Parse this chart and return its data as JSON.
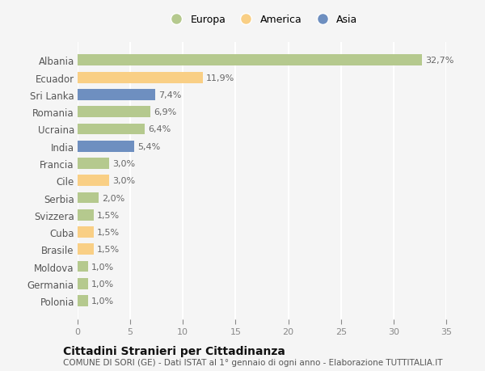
{
  "categories": [
    "Albania",
    "Ecuador",
    "Sri Lanka",
    "Romania",
    "Ucraina",
    "India",
    "Francia",
    "Cile",
    "Serbia",
    "Svizzera",
    "Cuba",
    "Brasile",
    "Moldova",
    "Germania",
    "Polonia"
  ],
  "values": [
    32.7,
    11.9,
    7.4,
    6.9,
    6.4,
    5.4,
    3.0,
    3.0,
    2.0,
    1.5,
    1.5,
    1.5,
    1.0,
    1.0,
    1.0
  ],
  "labels": [
    "32,7%",
    "11,9%",
    "7,4%",
    "6,9%",
    "6,4%",
    "5,4%",
    "3,0%",
    "3,0%",
    "2,0%",
    "1,5%",
    "1,5%",
    "1,5%",
    "1,0%",
    "1,0%",
    "1,0%"
  ],
  "colors": [
    "#b5c98e",
    "#f9cf85",
    "#6e8fc0",
    "#b5c98e",
    "#b5c98e",
    "#6e8fc0",
    "#b5c98e",
    "#f9cf85",
    "#b5c98e",
    "#b5c98e",
    "#f9cf85",
    "#f9cf85",
    "#b5c98e",
    "#b5c98e",
    "#b5c98e"
  ],
  "legend_labels": [
    "Europa",
    "America",
    "Asia"
  ],
  "legend_colors": [
    "#b5c98e",
    "#f9cf85",
    "#6e8fc0"
  ],
  "xlim": [
    0,
    35
  ],
  "xticks": [
    0,
    5,
    10,
    15,
    20,
    25,
    30,
    35
  ],
  "background_color": "#f5f5f5",
  "title": "Cittadini Stranieri per Cittadinanza",
  "subtitle": "COMUNE DI SORI (GE) - Dati ISTAT al 1° gennaio di ogni anno - Elaborazione TUTTITALIA.IT",
  "bar_height": 0.65,
  "label_fontsize": 8,
  "ytick_fontsize": 8.5,
  "xtick_fontsize": 8,
  "title_fontsize": 10,
  "subtitle_fontsize": 7.5,
  "legend_fontsize": 9
}
